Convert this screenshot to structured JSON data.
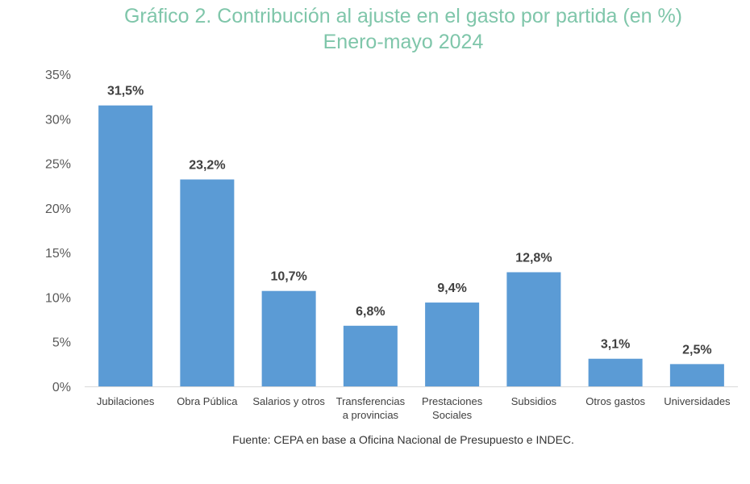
{
  "chart_data": {
    "type": "bar",
    "title": "Gráfico 2. Contribución al ajuste en el gasto por partida (en %)",
    "subtitle": "Enero-mayo 2024",
    "xlabel": "",
    "ylabel": "",
    "ylim": [
      0,
      35
    ],
    "yticks": [
      0,
      5,
      10,
      15,
      20,
      25,
      30,
      35
    ],
    "ytick_labels": [
      "0%",
      "5%",
      "10%",
      "15%",
      "20%",
      "25%",
      "30%",
      "35%"
    ],
    "grid": false,
    "legend": "none",
    "categories": [
      [
        "Jubilaciones"
      ],
      [
        "Obra Pública"
      ],
      [
        "Salarios y otros"
      ],
      [
        "Transferencias",
        "a provincias"
      ],
      [
        "Prestaciones",
        "Sociales"
      ],
      [
        "Subsidios"
      ],
      [
        "Otros gastos"
      ],
      [
        "Universidades"
      ]
    ],
    "values": [
      31.5,
      23.2,
      10.7,
      6.8,
      9.4,
      12.8,
      3.1,
      2.5
    ],
    "data_labels": [
      "31,5%",
      "23,2%",
      "10,7%",
      "6,8%",
      "9,4%",
      "12,8%",
      "3,1%",
      "2,5%"
    ],
    "bar_color": "#5b9bd5",
    "source": "Fuente: CEPA en base a Oficina Nacional de Presupuesto e INDEC."
  }
}
